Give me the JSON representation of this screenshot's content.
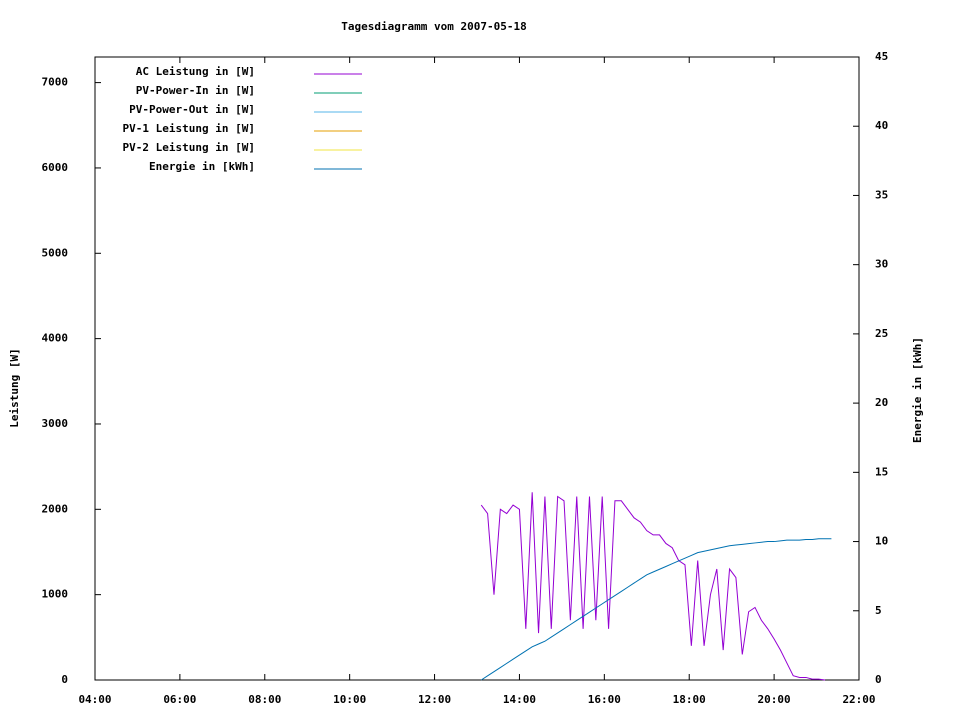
{
  "chart_data": {
    "type": "line",
    "title": "Tagesdiagramm vom 2007-05-18",
    "y_label": "Leistung [W]",
    "y2_label": "Energie in [kWh]",
    "x": [
      13.1,
      13.25,
      13.4,
      13.55,
      13.7,
      13.85,
      14.0,
      14.15,
      14.3,
      14.45,
      14.6,
      14.75,
      14.9,
      15.05,
      15.2,
      15.35,
      15.5,
      15.65,
      15.8,
      15.95,
      16.1,
      16.25,
      16.4,
      16.55,
      16.7,
      16.85,
      17.0,
      17.15,
      17.3,
      17.45,
      17.6,
      17.75,
      17.9,
      18.05,
      18.2,
      18.35,
      18.5,
      18.65,
      18.8,
      18.95,
      19.1,
      19.25,
      19.4,
      19.55,
      19.7,
      19.85,
      20.0,
      20.15,
      20.3,
      20.45,
      20.6,
      20.75,
      20.9,
      21.05,
      21.2,
      21.35
    ],
    "series": [
      {
        "name": "AC Leistung in [W]",
        "color": "#9400d3",
        "axis": "y",
        "values": [
          2050,
          1950,
          1000,
          2000,
          1950,
          2050,
          2000,
          600,
          2200,
          550,
          2150,
          600,
          2150,
          2100,
          700,
          2150,
          600,
          2150,
          700,
          2150,
          600,
          2100,
          2100,
          2000,
          1900,
          1850,
          1750,
          1700,
          1700,
          1600,
          1550,
          1400,
          1350,
          400,
          1400,
          400,
          1000,
          1300,
          350,
          1300,
          1200,
          300,
          800,
          850,
          700,
          600,
          480,
          350,
          200,
          50,
          30,
          30,
          10,
          10,
          0,
          null
        ]
      },
      {
        "name": "PV-Power-In in [W]",
        "color": "#009e73",
        "axis": "y",
        "values": [
          null,
          null,
          null,
          null,
          null,
          null,
          null,
          null,
          null,
          null,
          null,
          null,
          null,
          null,
          null,
          null,
          null,
          null,
          null,
          null,
          null,
          null,
          null,
          null,
          null,
          null,
          null,
          null,
          null,
          null,
          null,
          null,
          null,
          null,
          null,
          null,
          null,
          null,
          null,
          null,
          null,
          null,
          null,
          null,
          null,
          null,
          null,
          null,
          null,
          null,
          null,
          null,
          null,
          null,
          null,
          null
        ]
      },
      {
        "name": "PV-Power-Out in [W]",
        "color": "#56b4e9",
        "axis": "y",
        "values": [
          null,
          null,
          null,
          null,
          null,
          null,
          null,
          null,
          null,
          null,
          null,
          null,
          null,
          null,
          null,
          null,
          null,
          null,
          null,
          null,
          null,
          null,
          null,
          null,
          null,
          null,
          null,
          null,
          null,
          null,
          null,
          null,
          null,
          null,
          null,
          null,
          null,
          null,
          null,
          null,
          null,
          null,
          null,
          null,
          null,
          null,
          null,
          null,
          null,
          null,
          null,
          null,
          null,
          null,
          null,
          null
        ]
      },
      {
        "name": "PV-1 Leistung in [W]",
        "color": "#e69f00",
        "axis": "y",
        "values": [
          null,
          null,
          null,
          null,
          null,
          null,
          null,
          null,
          null,
          null,
          null,
          null,
          null,
          null,
          null,
          null,
          null,
          null,
          null,
          null,
          null,
          null,
          null,
          null,
          null,
          null,
          null,
          null,
          null,
          null,
          null,
          null,
          null,
          null,
          null,
          null,
          null,
          null,
          null,
          null,
          null,
          null,
          null,
          null,
          null,
          null,
          null,
          null,
          null,
          null,
          null,
          null,
          null,
          null,
          null,
          null
        ]
      },
      {
        "name": "PV-2 Leistung in [W]",
        "color": "#f0e442",
        "axis": "y",
        "values": [
          null,
          null,
          null,
          null,
          null,
          null,
          null,
          null,
          null,
          null,
          null,
          null,
          null,
          null,
          null,
          null,
          null,
          null,
          null,
          null,
          null,
          null,
          null,
          null,
          null,
          null,
          null,
          null,
          null,
          null,
          null,
          null,
          null,
          null,
          null,
          null,
          null,
          null,
          null,
          null,
          null,
          null,
          null,
          null,
          null,
          null,
          null,
          null,
          null,
          null,
          null,
          null,
          null,
          null,
          null,
          null
        ]
      },
      {
        "name": "Energie in [kWh]",
        "color": "#0072b2",
        "axis": "y2",
        "values": [
          0,
          0.3,
          0.6,
          0.9,
          1.2,
          1.5,
          1.8,
          2.1,
          2.4,
          2.6,
          2.8,
          3.1,
          3.4,
          3.7,
          4.0,
          4.3,
          4.6,
          4.9,
          5.2,
          5.5,
          5.8,
          6.1,
          6.4,
          6.7,
          7.0,
          7.3,
          7.6,
          7.8,
          8.0,
          8.2,
          8.4,
          8.6,
          8.8,
          9.0,
          9.2,
          9.3,
          9.4,
          9.5,
          9.6,
          9.7,
          9.75,
          9.8,
          9.85,
          9.9,
          9.95,
          10.0,
          10.0,
          10.05,
          10.1,
          10.1,
          10.1,
          10.15,
          10.15,
          10.2,
          10.2,
          10.2
        ]
      }
    ],
    "xlim": [
      4,
      22
    ],
    "xticks": [
      {
        "value": 4,
        "label": "04:00"
      },
      {
        "value": 6,
        "label": "06:00"
      },
      {
        "value": 8,
        "label": "08:00"
      },
      {
        "value": 10,
        "label": "10:00"
      },
      {
        "value": 12,
        "label": "12:00"
      },
      {
        "value": 14,
        "label": "14:00"
      },
      {
        "value": 16,
        "label": "16:00"
      },
      {
        "value": 18,
        "label": "18:00"
      },
      {
        "value": 20,
        "label": "20:00"
      },
      {
        "value": 22,
        "label": "22:00"
      }
    ],
    "ylim": [
      0,
      7300
    ],
    "yticks": [
      0,
      1000,
      2000,
      3000,
      4000,
      5000,
      6000,
      7000
    ],
    "y2lim": [
      0,
      45
    ],
    "y2ticks": [
      0,
      5,
      10,
      15,
      20,
      25,
      30,
      35,
      40,
      45
    ],
    "grid": false,
    "legend": "top-left"
  }
}
